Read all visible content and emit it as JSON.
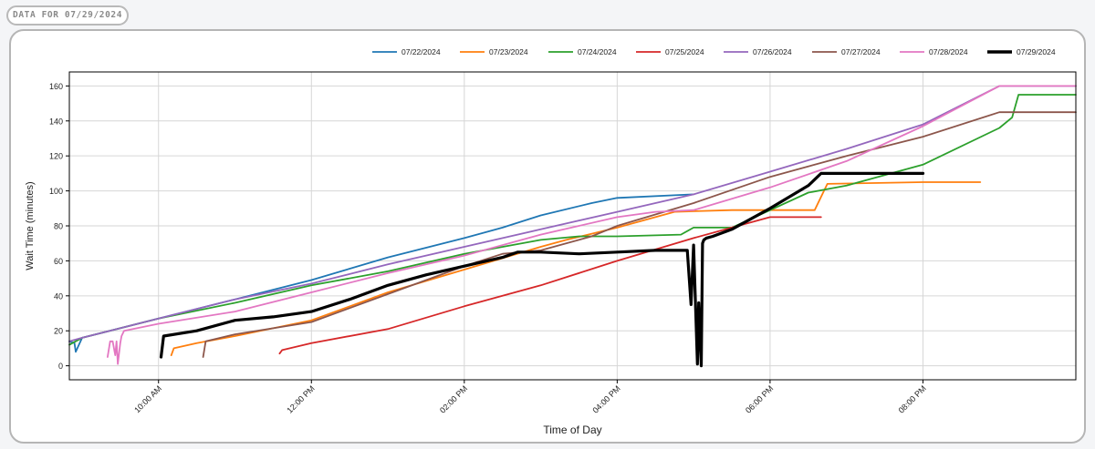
{
  "header": {
    "badge_label": "DATA FOR 07/29/2024"
  },
  "chart_data": {
    "type": "line",
    "title": "",
    "xlabel": "Time of Day",
    "ylabel": "Wait Time (minutes)",
    "x_unit": "clock time (HH:MM)",
    "xlim": [
      "08:50",
      "22:00"
    ],
    "ylim": [
      -8,
      168
    ],
    "yticks": [
      0,
      20,
      40,
      60,
      80,
      100,
      120,
      140,
      160
    ],
    "xticks": [
      "10:00",
      "12:00",
      "14:00",
      "16:00",
      "18:00",
      "20:00"
    ],
    "xtick_labels": [
      "10:00 AM",
      "12:00 PM",
      "02:00 PM",
      "04:00 PM",
      "06:00 PM",
      "08:00 PM"
    ],
    "grid": true,
    "legend_position": "top-right",
    "series": [
      {
        "name": "07/22/2024",
        "color": "#1f77b4",
        "x": [
          "08:50",
          "08:54",
          "08:55",
          "09:00",
          "10:00",
          "11:00",
          "12:00",
          "13:00",
          "14:00",
          "14:30",
          "15:00",
          "15:40",
          "16:00",
          "17:00"
        ],
        "y": [
          14,
          13,
          8,
          16,
          27,
          38,
          49,
          62,
          73,
          79,
          86,
          93,
          96,
          98
        ]
      },
      {
        "name": "07/23/2024",
        "color": "#ff7f0e",
        "x": [
          "10:10",
          "10:12",
          "10:30",
          "11:00",
          "12:00",
          "13:00",
          "14:00",
          "15:00",
          "15:20",
          "16:00",
          "16:45",
          "17:30",
          "18:00",
          "18:30",
          "18:35",
          "18:45",
          "20:00",
          "20:45"
        ],
        "y": [
          6,
          10,
          13,
          17,
          26,
          42,
          55,
          68,
          72,
          79,
          88,
          89,
          89,
          89,
          89,
          104,
          105,
          105
        ]
      },
      {
        "name": "07/24/2024",
        "color": "#2ca02c",
        "x": [
          "08:50",
          "09:00",
          "10:00",
          "11:00",
          "12:00",
          "13:00",
          "14:00",
          "15:00",
          "15:30",
          "16:00",
          "16:50",
          "17:00",
          "17:30",
          "18:30",
          "19:00",
          "20:00",
          "21:00",
          "21:10",
          "21:15",
          "22:00"
        ],
        "y": [
          12,
          16,
          27,
          36,
          46,
          54,
          64,
          72,
          74,
          74,
          75,
          79,
          79,
          99,
          103,
          115,
          136,
          142,
          155,
          155
        ]
      },
      {
        "name": "07/25/2024",
        "color": "#d62728",
        "x": [
          "11:35",
          "11:37",
          "12:00",
          "13:00",
          "14:00",
          "15:00",
          "16:00",
          "17:00",
          "17:30",
          "18:00",
          "18:40"
        ],
        "y": [
          7,
          9,
          13,
          21,
          34,
          46,
          60,
          73,
          79,
          85,
          85
        ]
      },
      {
        "name": "07/26/2024",
        "color": "#9467bd",
        "x": [
          "08:50",
          "09:00",
          "10:00",
          "11:00",
          "12:00",
          "13:00",
          "14:00",
          "15:00",
          "16:00",
          "17:00",
          "18:00",
          "19:00",
          "20:00",
          "21:00",
          "22:00"
        ],
        "y": [
          14,
          16,
          27,
          38,
          47,
          58,
          68,
          78,
          88,
          98,
          111,
          124,
          138,
          160,
          160
        ]
      },
      {
        "name": "07/27/2024",
        "color": "#8c564b",
        "x": [
          "10:35",
          "10:37",
          "11:00",
          "12:00",
          "13:00",
          "14:00",
          "14:30",
          "15:00",
          "15:40",
          "16:00",
          "17:00",
          "18:00",
          "19:00",
          "20:00",
          "21:00",
          "22:00"
        ],
        "y": [
          5,
          14,
          18,
          25,
          41,
          57,
          64,
          66,
          74,
          80,
          93,
          108,
          120,
          131,
          145,
          145
        ]
      },
      {
        "name": "07/28/2024",
        "color": "#e377c2",
        "x": [
          "09:20",
          "09:22",
          "09:24",
          "09:26",
          "09:27",
          "09:28",
          "09:30",
          "09:31",
          "09:33",
          "10:00",
          "11:00",
          "12:00",
          "13:00",
          "14:00",
          "15:00",
          "15:30",
          "16:00",
          "16:30",
          "17:00",
          "18:00",
          "19:00",
          "20:00",
          "21:00",
          "22:00"
        ],
        "y": [
          5,
          14,
          14,
          6,
          14,
          1,
          13,
          17,
          20,
          24,
          31,
          42,
          53,
          63,
          75,
          80,
          85,
          88,
          89,
          102,
          117,
          137,
          160,
          160
        ]
      },
      {
        "name": "07/29/2024",
        "color": "#000000",
        "x": [
          "10:02",
          "10:04",
          "10:30",
          "11:00",
          "11:30",
          "12:00",
          "12:30",
          "13:00",
          "13:30",
          "14:00",
          "14:30",
          "14:42",
          "15:00",
          "15:30",
          "16:00",
          "16:30",
          "16:55",
          "16:58",
          "17:00",
          "17:03",
          "17:04",
          "17:06",
          "17:07",
          "17:08",
          "17:10",
          "17:15",
          "17:30",
          "18:00",
          "18:30",
          "18:40",
          "18:50",
          "19:00",
          "20:00"
        ],
        "y": [
          5,
          17,
          20,
          26,
          28,
          31,
          38,
          46,
          52,
          57,
          62,
          65,
          65,
          64,
          65,
          66,
          66,
          35,
          69,
          1,
          36,
          0,
          70,
          72,
          73,
          74,
          78,
          90,
          103,
          110,
          110,
          110,
          110
        ]
      }
    ]
  }
}
